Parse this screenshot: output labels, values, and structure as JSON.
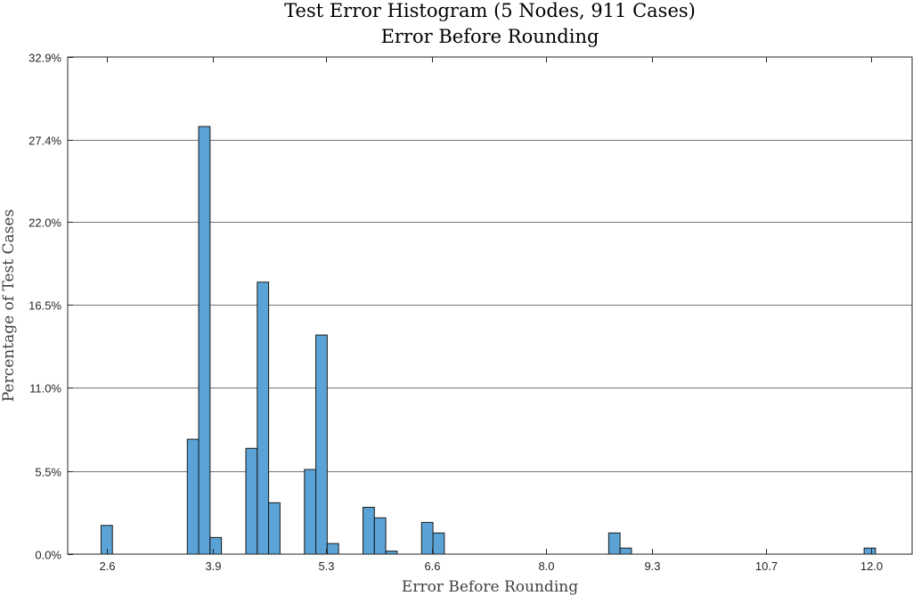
{
  "chart_data": {
    "type": "bar",
    "title": "Test Error Histogram (5 Nodes, 911 Cases)",
    "subtitle": "Error Before Rounding",
    "xlabel": "Error Before Rounding",
    "ylabel": "Percentage of Test Cases",
    "xlim": [
      2.12,
      12.5
    ],
    "ylim": [
      0,
      32.9
    ],
    "x_ticks": [
      "2.6",
      "3.9",
      "5.3",
      "6.6",
      "8.0",
      "9.3",
      "10.7",
      "12.0"
    ],
    "x_tick_values": [
      2.6,
      3.9,
      5.3,
      6.6,
      8.0,
      9.3,
      10.7,
      12.0
    ],
    "y_ticks": [
      "0.0%",
      "5.5%",
      "11.0%",
      "16.5%",
      "22.0%",
      "27.4%",
      "32.9%"
    ],
    "y_tick_values": [
      0,
      5.5,
      11.0,
      16.5,
      22.0,
      27.4,
      32.9
    ],
    "grid": true,
    "bar_color": "#5ba3d6",
    "bar_edge_color": "#1a1a1a",
    "bin_width": 0.14,
    "bins": [
      {
        "x": 2.6,
        "value": 1.9
      },
      {
        "x": 3.66,
        "value": 7.6
      },
      {
        "x": 3.8,
        "value": 28.3
      },
      {
        "x": 3.94,
        "value": 1.1
      },
      {
        "x": 4.38,
        "value": 7.0
      },
      {
        "x": 4.52,
        "value": 18.0
      },
      {
        "x": 4.66,
        "value": 3.4
      },
      {
        "x": 5.1,
        "value": 5.6
      },
      {
        "x": 5.24,
        "value": 14.5
      },
      {
        "x": 5.38,
        "value": 0.7
      },
      {
        "x": 5.82,
        "value": 3.1
      },
      {
        "x": 5.96,
        "value": 2.4
      },
      {
        "x": 6.1,
        "value": 0.2
      },
      {
        "x": 6.54,
        "value": 2.1
      },
      {
        "x": 6.68,
        "value": 1.4
      },
      {
        "x": 8.84,
        "value": 1.4
      },
      {
        "x": 8.98,
        "value": 0.4
      },
      {
        "x": 11.98,
        "value": 0.4
      }
    ]
  }
}
